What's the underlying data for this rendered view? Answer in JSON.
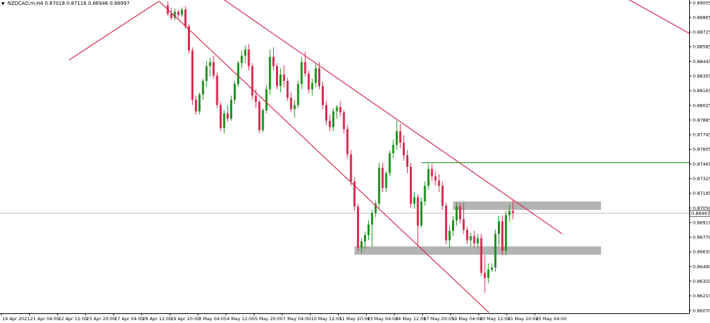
{
  "header": {
    "symbol": "NZDCAD,m,H4",
    "ohlc": "0.87018 0.87116 0.86946 0.86997"
  },
  "colors": {
    "bull": "#1f8f1f",
    "bear": "#d6294f",
    "trendline": "#d6294f",
    "level": "#2a8c2a",
    "zone": "#b3b3b3",
    "axis": "#000000",
    "price_line": "#a8a8a8"
  },
  "current_price_label": "0.86997",
  "chart_data": {
    "type": "candlestick",
    "title": "",
    "timeframe": "H4",
    "ylim": [
      0.8607,
      0.89005
    ],
    "y_ticks": [
      "0.89005",
      "0.88865",
      "0.88725",
      "0.88585",
      "0.88445",
      "0.88305",
      "0.88165",
      "0.88025",
      "0.87885",
      "0.87745",
      "0.87605",
      "0.87465",
      "0.87325",
      "0.87185",
      "0.87050",
      "0.86910",
      "0.86770",
      "0.86630",
      "0.86490",
      "0.86350",
      "0.86210",
      "0.86070"
    ],
    "x_ticks": [
      "19 Apr 2021",
      "21 Apr 04:00",
      "22 Apr 12:00",
      "23 Apr 20:00",
      "27 Apr 04:00",
      "28 Apr 12:00",
      "29 Apr 20:00",
      "3 May 04:05",
      "4 May 12:00",
      "5 May 20:00",
      "7 May 04:00",
      "10 May 12:05",
      "11 May 20:00",
      "13 May 04:00",
      "14 May 12:00",
      "17 May 20:05",
      "19 May 04:00",
      "20 May 12:00",
      "21 May 20:00",
      "25 May 04:00"
    ],
    "current_price": 0.86997,
    "candles": [
      {
        "o": 0.8898,
        "h": 0.8902,
        "l": 0.8888,
        "c": 0.889
      },
      {
        "o": 0.889,
        "h": 0.8896,
        "l": 0.8884,
        "c": 0.8886
      },
      {
        "o": 0.8886,
        "h": 0.8895,
        "l": 0.8884,
        "c": 0.8892
      },
      {
        "o": 0.8892,
        "h": 0.8894,
        "l": 0.8886,
        "c": 0.8889
      },
      {
        "o": 0.8889,
        "h": 0.8896,
        "l": 0.8887,
        "c": 0.8894
      },
      {
        "o": 0.8894,
        "h": 0.8897,
        "l": 0.8876,
        "c": 0.8878
      },
      {
        "o": 0.8878,
        "h": 0.888,
        "l": 0.8852,
        "c": 0.8855
      },
      {
        "o": 0.8855,
        "h": 0.8858,
        "l": 0.8803,
        "c": 0.8808
      },
      {
        "o": 0.8808,
        "h": 0.8812,
        "l": 0.8794,
        "c": 0.8797
      },
      {
        "o": 0.8797,
        "h": 0.8815,
        "l": 0.8794,
        "c": 0.8813
      },
      {
        "o": 0.8813,
        "h": 0.8828,
        "l": 0.8808,
        "c": 0.8826
      },
      {
        "o": 0.8826,
        "h": 0.8845,
        "l": 0.882,
        "c": 0.884
      },
      {
        "o": 0.884,
        "h": 0.8848,
        "l": 0.883,
        "c": 0.8844
      },
      {
        "o": 0.8844,
        "h": 0.885,
        "l": 0.8828,
        "c": 0.8831
      },
      {
        "o": 0.8831,
        "h": 0.8834,
        "l": 0.88,
        "c": 0.8803
      },
      {
        "o": 0.8803,
        "h": 0.8806,
        "l": 0.8778,
        "c": 0.8781
      },
      {
        "o": 0.8781,
        "h": 0.8798,
        "l": 0.8776,
        "c": 0.8795
      },
      {
        "o": 0.8795,
        "h": 0.8803,
        "l": 0.8787,
        "c": 0.879
      },
      {
        "o": 0.879,
        "h": 0.8812,
        "l": 0.8788,
        "c": 0.8808
      },
      {
        "o": 0.8808,
        "h": 0.8826,
        "l": 0.8804,
        "c": 0.8823
      },
      {
        "o": 0.8823,
        "h": 0.8845,
        "l": 0.882,
        "c": 0.8843
      },
      {
        "o": 0.8843,
        "h": 0.8855,
        "l": 0.8838,
        "c": 0.885
      },
      {
        "o": 0.885,
        "h": 0.886,
        "l": 0.8843,
        "c": 0.8856
      },
      {
        "o": 0.8856,
        "h": 0.8861,
        "l": 0.8836,
        "c": 0.884
      },
      {
        "o": 0.884,
        "h": 0.8843,
        "l": 0.8808,
        "c": 0.8812
      },
      {
        "o": 0.8812,
        "h": 0.8818,
        "l": 0.88,
        "c": 0.8806
      },
      {
        "o": 0.8806,
        "h": 0.8808,
        "l": 0.8776,
        "c": 0.8779
      },
      {
        "o": 0.8779,
        "h": 0.88,
        "l": 0.8777,
        "c": 0.8798
      },
      {
        "o": 0.8798,
        "h": 0.8822,
        "l": 0.8795,
        "c": 0.8818
      },
      {
        "o": 0.8818,
        "h": 0.8856,
        "l": 0.8813,
        "c": 0.8849
      },
      {
        "o": 0.8849,
        "h": 0.8858,
        "l": 0.8836,
        "c": 0.884
      },
      {
        "o": 0.884,
        "h": 0.8843,
        "l": 0.8818,
        "c": 0.8821
      },
      {
        "o": 0.8821,
        "h": 0.8838,
        "l": 0.8815,
        "c": 0.8832
      },
      {
        "o": 0.8832,
        "h": 0.8841,
        "l": 0.882,
        "c": 0.8826
      },
      {
        "o": 0.8826,
        "h": 0.8829,
        "l": 0.8807,
        "c": 0.881
      },
      {
        "o": 0.881,
        "h": 0.8815,
        "l": 0.8796,
        "c": 0.8799
      },
      {
        "o": 0.8799,
        "h": 0.8808,
        "l": 0.8791,
        "c": 0.8803
      },
      {
        "o": 0.8803,
        "h": 0.8826,
        "l": 0.88,
        "c": 0.8823
      },
      {
        "o": 0.8823,
        "h": 0.8849,
        "l": 0.8818,
        "c": 0.8844
      },
      {
        "o": 0.8844,
        "h": 0.8854,
        "l": 0.883,
        "c": 0.8833
      },
      {
        "o": 0.8833,
        "h": 0.8836,
        "l": 0.8814,
        "c": 0.8818
      },
      {
        "o": 0.8818,
        "h": 0.8828,
        "l": 0.8812,
        "c": 0.8824
      },
      {
        "o": 0.8824,
        "h": 0.8842,
        "l": 0.882,
        "c": 0.8838
      },
      {
        "o": 0.8838,
        "h": 0.8844,
        "l": 0.8818,
        "c": 0.8821
      },
      {
        "o": 0.8821,
        "h": 0.8825,
        "l": 0.8799,
        "c": 0.8803
      },
      {
        "o": 0.8803,
        "h": 0.8807,
        "l": 0.8784,
        "c": 0.8788
      },
      {
        "o": 0.8788,
        "h": 0.8794,
        "l": 0.8778,
        "c": 0.8782
      },
      {
        "o": 0.8782,
        "h": 0.88,
        "l": 0.8778,
        "c": 0.8797
      },
      {
        "o": 0.8797,
        "h": 0.8803,
        "l": 0.879,
        "c": 0.8801
      },
      {
        "o": 0.8801,
        "h": 0.8807,
        "l": 0.8792,
        "c": 0.8796
      },
      {
        "o": 0.8796,
        "h": 0.8798,
        "l": 0.8776,
        "c": 0.878
      },
      {
        "o": 0.878,
        "h": 0.8784,
        "l": 0.8752,
        "c": 0.8756
      },
      {
        "o": 0.8756,
        "h": 0.876,
        "l": 0.8726,
        "c": 0.873
      },
      {
        "o": 0.873,
        "h": 0.8734,
        "l": 0.8702,
        "c": 0.8706
      },
      {
        "o": 0.8706,
        "h": 0.8709,
        "l": 0.8664,
        "c": 0.8667
      },
      {
        "o": 0.8667,
        "h": 0.8676,
        "l": 0.8662,
        "c": 0.8673
      },
      {
        "o": 0.8673,
        "h": 0.8682,
        "l": 0.8666,
        "c": 0.8679
      },
      {
        "o": 0.8679,
        "h": 0.8693,
        "l": 0.8674,
        "c": 0.8689
      },
      {
        "o": 0.8689,
        "h": 0.8703,
        "l": 0.8668,
        "c": 0.87
      },
      {
        "o": 0.87,
        "h": 0.8712,
        "l": 0.8696,
        "c": 0.8709
      },
      {
        "o": 0.8709,
        "h": 0.8748,
        "l": 0.8705,
        "c": 0.8743
      },
      {
        "o": 0.8743,
        "h": 0.8748,
        "l": 0.872,
        "c": 0.8724
      },
      {
        "o": 0.8724,
        "h": 0.874,
        "l": 0.872,
        "c": 0.8738
      },
      {
        "o": 0.8738,
        "h": 0.876,
        "l": 0.8735,
        "c": 0.8757
      },
      {
        "o": 0.8757,
        "h": 0.877,
        "l": 0.8752,
        "c": 0.8765
      },
      {
        "o": 0.8765,
        "h": 0.8788,
        "l": 0.876,
        "c": 0.8778
      },
      {
        "o": 0.8778,
        "h": 0.8785,
        "l": 0.8762,
        "c": 0.8767
      },
      {
        "o": 0.8767,
        "h": 0.8774,
        "l": 0.875,
        "c": 0.8755
      },
      {
        "o": 0.8755,
        "h": 0.876,
        "l": 0.8738,
        "c": 0.8744
      },
      {
        "o": 0.8744,
        "h": 0.8748,
        "l": 0.8705,
        "c": 0.8709
      },
      {
        "o": 0.8709,
        "h": 0.872,
        "l": 0.8704,
        "c": 0.8715
      },
      {
        "o": 0.8715,
        "h": 0.8718,
        "l": 0.8668,
        "c": 0.8688
      },
      {
        "o": 0.8688,
        "h": 0.8715,
        "l": 0.8686,
        "c": 0.8711
      },
      {
        "o": 0.8711,
        "h": 0.873,
        "l": 0.8707,
        "c": 0.8726
      },
      {
        "o": 0.8726,
        "h": 0.8747,
        "l": 0.8722,
        "c": 0.8742
      },
      {
        "o": 0.8742,
        "h": 0.8747,
        "l": 0.8731,
        "c": 0.8735
      },
      {
        "o": 0.8735,
        "h": 0.874,
        "l": 0.8726,
        "c": 0.8731
      },
      {
        "o": 0.8731,
        "h": 0.8737,
        "l": 0.872,
        "c": 0.8726
      },
      {
        "o": 0.8726,
        "h": 0.873,
        "l": 0.8703,
        "c": 0.8707
      },
      {
        "o": 0.8707,
        "h": 0.871,
        "l": 0.867,
        "c": 0.8674
      },
      {
        "o": 0.8674,
        "h": 0.8688,
        "l": 0.8666,
        "c": 0.8683
      },
      {
        "o": 0.8683,
        "h": 0.8697,
        "l": 0.8678,
        "c": 0.8693
      },
      {
        "o": 0.8693,
        "h": 0.871,
        "l": 0.8688,
        "c": 0.8706
      },
      {
        "o": 0.8706,
        "h": 0.871,
        "l": 0.869,
        "c": 0.8694
      },
      {
        "o": 0.8694,
        "h": 0.871,
        "l": 0.868,
        "c": 0.8684
      },
      {
        "o": 0.8684,
        "h": 0.8687,
        "l": 0.867,
        "c": 0.8674
      },
      {
        "o": 0.8674,
        "h": 0.8681,
        "l": 0.8668,
        "c": 0.8678
      },
      {
        "o": 0.8678,
        "h": 0.8683,
        "l": 0.8667,
        "c": 0.8671
      },
      {
        "o": 0.8671,
        "h": 0.868,
        "l": 0.8666,
        "c": 0.8676
      },
      {
        "o": 0.8676,
        "h": 0.868,
        "l": 0.864,
        "c": 0.8643
      },
      {
        "o": 0.8643,
        "h": 0.866,
        "l": 0.8624,
        "c": 0.8638
      },
      {
        "o": 0.8638,
        "h": 0.8652,
        "l": 0.8633,
        "c": 0.8646
      },
      {
        "o": 0.8646,
        "h": 0.8652,
        "l": 0.8644,
        "c": 0.8648
      },
      {
        "o": 0.8648,
        "h": 0.8684,
        "l": 0.8644,
        "c": 0.868
      },
      {
        "o": 0.868,
        "h": 0.8697,
        "l": 0.8669,
        "c": 0.8692
      },
      {
        "o": 0.8692,
        "h": 0.8698,
        "l": 0.866,
        "c": 0.8664
      },
      {
        "o": 0.8664,
        "h": 0.8702,
        "l": 0.866,
        "c": 0.8698
      },
      {
        "o": 0.8698,
        "h": 0.8708,
        "l": 0.8692,
        "c": 0.8702
      },
      {
        "o": 0.8702,
        "h": 0.8712,
        "l": 0.8694,
        "c": 0.87
      }
    ],
    "trendlines": [
      {
        "from": {
          "bar": -28,
          "price": 0.8846
        },
        "to": {
          "bar": -2.5,
          "price": 0.8902
        }
      },
      {
        "from": {
          "bar": -2.5,
          "price": 0.8902
        },
        "to": {
          "bar": 91.2,
          "price": 0.8605
        }
      },
      {
        "from": {
          "bar": 14,
          "price": 0.8908
        },
        "to": {
          "bar": 112,
          "price": 0.868
        }
      },
      {
        "from": {
          "bar": 128.5,
          "price": 0.8908
        },
        "to": {
          "bar": 152.5,
          "price": 0.8863
        }
      }
    ],
    "horizontal_levels": [
      {
        "price": 0.8748,
        "from_bar": 72,
        "to_bar": 152.5
      }
    ],
    "zones": [
      {
        "price_top": 0.8711,
        "price_bottom": 0.8703,
        "from_bar": 81,
        "to_bar": 123
      },
      {
        "price_top": 0.86682,
        "price_bottom": 0.86602,
        "from_bar": 53,
        "to_bar": 123
      }
    ]
  }
}
